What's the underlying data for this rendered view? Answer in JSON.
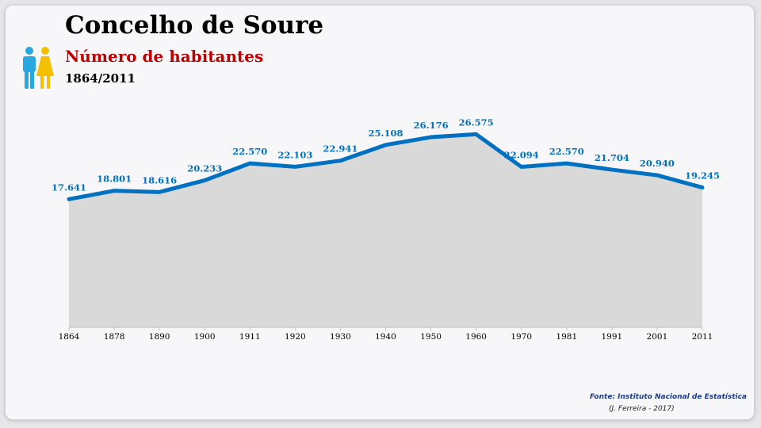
{
  "header": {
    "title": "Concelho de Soure",
    "subtitle": "Número de habitantes",
    "period": "1864/2011",
    "icon": "people-icon"
  },
  "footer": {
    "source": "Fonte: Instituto Nacional de Estatística",
    "author": "(J. Ferreira - 2017)"
  },
  "colors": {
    "line": "#0070c0",
    "area": "#d9d9d9",
    "labels": "#0070c0",
    "subtitle": "#c00000",
    "man": "#29a8e0",
    "woman": "#f5c000"
  },
  "chart_data": {
    "type": "area",
    "title": "Número de habitantes",
    "categories": [
      "1864",
      "1878",
      "1890",
      "1900",
      "1911",
      "1920",
      "1930",
      "1940",
      "1950",
      "1960",
      "1970",
      "1981",
      "1991",
      "2001",
      "2011"
    ],
    "values": [
      17641,
      18801,
      18616,
      20233,
      22570,
      22103,
      22941,
      25108,
      26176,
      26575,
      22094,
      22570,
      21704,
      20940,
      19245
    ],
    "labels": [
      "17.641",
      "18.801",
      "18.616",
      "20.233",
      "22.570",
      "22.103",
      "22.941",
      "25.108",
      "26.176",
      "26.575",
      "22.094",
      "22.570",
      "21.704",
      "20.940",
      "19.245"
    ],
    "xlabel": "",
    "ylabel": "",
    "ylim": [
      0,
      30000
    ],
    "grid": false,
    "legend": "none"
  }
}
